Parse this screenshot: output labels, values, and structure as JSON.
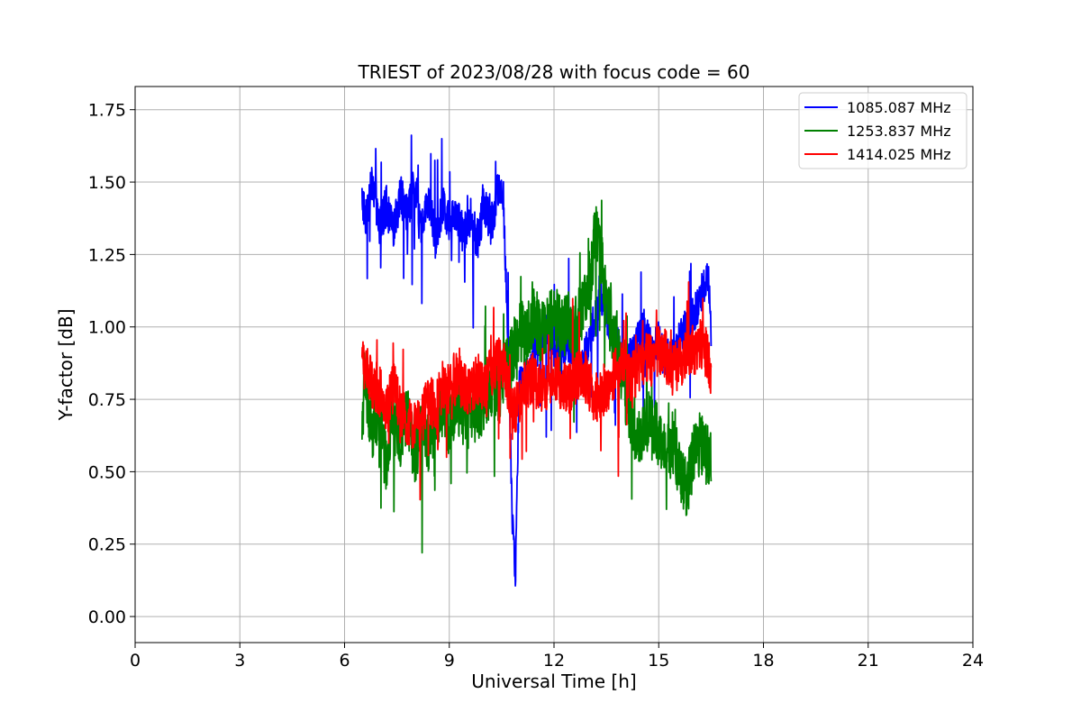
{
  "chart_data": {
    "type": "line",
    "title": "TRIEST of 2023/08/28 with focus code = 60",
    "xlabel": "Universal Time [h]",
    "ylabel": "Y-factor [dB]",
    "xlim": [
      0,
      24
    ],
    "ylim": [
      -0.09,
      1.83
    ],
    "xticks": [
      0,
      3,
      6,
      9,
      12,
      15,
      18,
      21,
      24
    ],
    "yticks": [
      0.0,
      0.25,
      0.5,
      0.75,
      1.0,
      1.25,
      1.5,
      1.75
    ],
    "ytick_labels": [
      "0.00",
      "0.25",
      "0.50",
      "0.75",
      "1.00",
      "1.25",
      "1.50",
      "1.75"
    ],
    "grid": true,
    "legend_position": "top-right",
    "series": [
      {
        "name": "1085.087 MHz",
        "color": "#0000ff",
        "x": [
          6.5,
          6.6,
          6.8,
          7.0,
          7.2,
          7.4,
          7.6,
          7.8,
          8.0,
          8.2,
          8.4,
          8.6,
          8.8,
          9.0,
          9.2,
          9.4,
          9.6,
          9.8,
          10.0,
          10.2,
          10.4,
          10.55,
          10.7,
          10.8,
          10.9,
          11.0,
          11.2,
          11.4,
          11.6,
          11.8,
          12.0,
          12.2,
          12.4,
          12.6,
          12.8,
          13.0,
          13.2,
          13.4,
          13.6,
          13.8,
          14.0,
          14.2,
          14.4,
          14.6,
          14.8,
          15.0,
          15.2,
          15.4,
          15.6,
          15.8,
          16.0,
          16.2,
          16.4,
          16.5
        ],
        "y": [
          1.45,
          1.38,
          1.5,
          1.35,
          1.42,
          1.32,
          1.46,
          1.38,
          1.5,
          1.35,
          1.45,
          1.3,
          1.42,
          1.36,
          1.4,
          1.32,
          1.38,
          1.3,
          1.42,
          1.35,
          1.48,
          1.45,
          0.85,
          0.35,
          0.15,
          0.8,
          0.82,
          0.9,
          0.95,
          1.0,
          0.92,
          0.88,
          0.95,
          0.9,
          0.85,
          0.95,
          1.05,
          1.1,
          1.0,
          0.95,
          0.85,
          0.9,
          0.95,
          1.0,
          0.92,
          0.95,
          0.88,
          0.92,
          0.95,
          1.0,
          1.05,
          1.1,
          1.2,
          1.0
        ]
      },
      {
        "name": "1253.837 MHz",
        "color": "#008000",
        "x": [
          6.5,
          6.6,
          6.8,
          7.0,
          7.2,
          7.4,
          7.6,
          7.8,
          8.0,
          8.2,
          8.4,
          8.6,
          8.8,
          9.0,
          9.2,
          9.4,
          9.6,
          9.8,
          10.0,
          10.2,
          10.4,
          10.6,
          10.8,
          11.0,
          11.2,
          11.4,
          11.6,
          11.8,
          12.0,
          12.2,
          12.4,
          12.6,
          12.8,
          13.0,
          13.2,
          13.4,
          13.6,
          13.8,
          14.0,
          14.2,
          14.4,
          14.6,
          14.8,
          15.0,
          15.2,
          15.4,
          15.6,
          15.8,
          16.0,
          16.2,
          16.4,
          16.5
        ],
        "y": [
          0.7,
          0.78,
          0.65,
          0.72,
          0.5,
          0.68,
          0.62,
          0.7,
          0.55,
          0.65,
          0.6,
          0.68,
          0.72,
          0.66,
          0.75,
          0.7,
          0.74,
          0.68,
          0.76,
          0.8,
          0.78,
          0.85,
          0.9,
          1.0,
          0.95,
          1.05,
          0.98,
          1.0,
          1.05,
          1.0,
          1.02,
          1.0,
          1.05,
          1.1,
          1.35,
          1.2,
          1.0,
          0.95,
          0.8,
          0.7,
          0.6,
          0.65,
          0.7,
          0.6,
          0.55,
          0.6,
          0.5,
          0.45,
          0.55,
          0.6,
          0.55,
          0.55
        ]
      },
      {
        "name": "1414.025 MHz",
        "color": "#ff0000",
        "x": [
          6.5,
          6.6,
          6.8,
          7.0,
          7.2,
          7.4,
          7.6,
          7.8,
          8.0,
          8.2,
          8.4,
          8.6,
          8.8,
          9.0,
          9.2,
          9.4,
          9.6,
          9.8,
          10.0,
          10.2,
          10.4,
          10.6,
          10.8,
          11.0,
          11.2,
          11.4,
          11.6,
          11.8,
          12.0,
          12.2,
          12.4,
          12.6,
          12.8,
          13.0,
          13.2,
          13.4,
          13.6,
          13.8,
          14.0,
          14.2,
          14.4,
          14.6,
          14.8,
          15.0,
          15.2,
          15.4,
          15.6,
          15.8,
          16.0,
          16.2,
          16.4,
          16.5
        ],
        "y": [
          0.9,
          0.85,
          0.8,
          0.78,
          0.7,
          0.8,
          0.72,
          0.68,
          0.65,
          0.7,
          0.75,
          0.72,
          0.8,
          0.78,
          0.82,
          0.8,
          0.78,
          0.82,
          0.8,
          0.85,
          0.88,
          0.85,
          0.7,
          0.75,
          0.8,
          0.82,
          0.78,
          0.8,
          0.85,
          0.8,
          0.78,
          0.82,
          0.85,
          0.8,
          0.75,
          0.78,
          0.8,
          0.85,
          0.88,
          0.82,
          0.85,
          0.9,
          0.88,
          0.92,
          0.9,
          0.85,
          0.88,
          0.9,
          0.92,
          0.95,
          0.9,
          0.85
        ]
      }
    ]
  }
}
